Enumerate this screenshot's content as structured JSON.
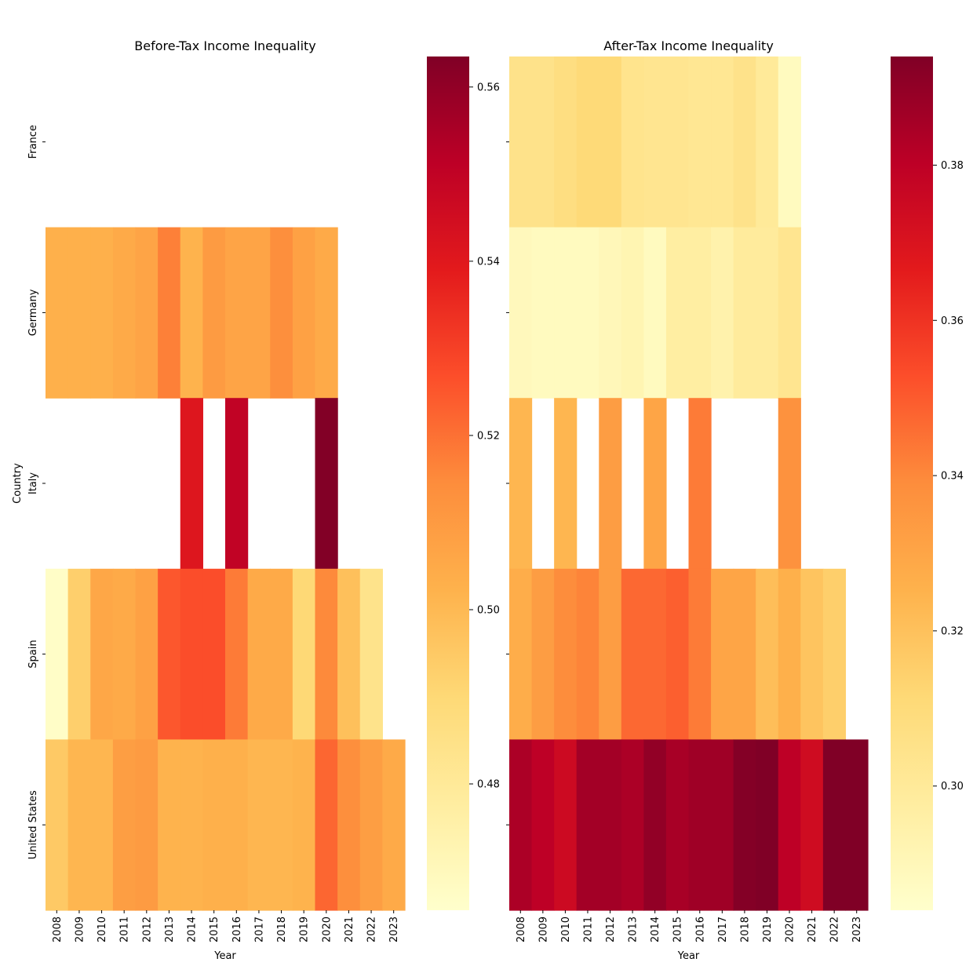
{
  "chart_data": [
    {
      "type": "heatmap",
      "title": "Before-Tax Income Inequality",
      "xlabel": "Year",
      "ylabel": "Country",
      "x_categories": [
        "2008",
        "2009",
        "2010",
        "2011",
        "2012",
        "2013",
        "2014",
        "2015",
        "2016",
        "2017",
        "2018",
        "2019",
        "2020",
        "2021",
        "2022",
        "2023"
      ],
      "y_categories": [
        "France",
        "Germany",
        "Italy",
        "Spain",
        "United States"
      ],
      "colormap": "YlOrRd",
      "vmin": 0.4655,
      "vmax": 0.5635,
      "colorbar_ticks": [
        0.48,
        0.5,
        0.52,
        0.54,
        0.56
      ],
      "values": [
        [
          null,
          null,
          null,
          null,
          null,
          null,
          null,
          null,
          null,
          null,
          null,
          null,
          null,
          null,
          null,
          null
        ],
        [
          0.503,
          0.503,
          0.503,
          0.505,
          0.507,
          0.517,
          0.502,
          0.51,
          0.507,
          0.507,
          0.514,
          0.508,
          0.505,
          null,
          null,
          null
        ],
        [
          null,
          null,
          null,
          null,
          null,
          null,
          0.541,
          null,
          0.55,
          null,
          null,
          null,
          0.563,
          null,
          null,
          null
        ],
        [
          0.467,
          0.493,
          0.506,
          0.505,
          0.508,
          0.525,
          0.527,
          0.527,
          0.518,
          0.505,
          0.505,
          0.49,
          0.515,
          0.498,
          0.484,
          null
        ],
        [
          0.495,
          0.501,
          0.501,
          0.509,
          0.51,
          0.502,
          0.502,
          0.503,
          0.503,
          0.501,
          0.501,
          0.502,
          0.522,
          0.514,
          0.509,
          0.505
        ]
      ]
    },
    {
      "type": "heatmap",
      "title": "After-Tax Income Inequality",
      "xlabel": "Year",
      "ylabel": "",
      "x_categories": [
        "2008",
        "2009",
        "2010",
        "2011",
        "2012",
        "2013",
        "2014",
        "2015",
        "2016",
        "2017",
        "2018",
        "2019",
        "2020",
        "2021",
        "2022",
        "2023"
      ],
      "y_categories": [
        "France",
        "Germany",
        "Italy",
        "Spain",
        "United States"
      ],
      "colormap": "YlOrRd",
      "vmin": 0.284,
      "vmax": 0.394,
      "colorbar_ticks": [
        0.3,
        0.32,
        0.34,
        0.36,
        0.38
      ],
      "values": [
        [
          0.305,
          0.305,
          0.308,
          0.311,
          0.311,
          0.304,
          0.303,
          0.303,
          0.302,
          0.302,
          0.305,
          0.3,
          0.288,
          null,
          null,
          null
        ],
        [
          0.289,
          0.288,
          0.288,
          0.288,
          0.29,
          0.292,
          0.288,
          0.297,
          0.297,
          0.294,
          0.299,
          0.299,
          0.303,
          null,
          null,
          null
        ],
        [
          0.324,
          null,
          0.324,
          null,
          0.333,
          null,
          0.33,
          null,
          0.343,
          null,
          null,
          null,
          0.337,
          null,
          null,
          null
        ],
        [
          0.327,
          0.333,
          0.339,
          0.341,
          0.333,
          0.347,
          0.347,
          0.349,
          0.343,
          0.33,
          0.33,
          0.321,
          0.326,
          0.319,
          0.315,
          null
        ],
        [
          0.384,
          0.38,
          0.375,
          0.386,
          0.386,
          0.384,
          0.39,
          0.385,
          0.387,
          0.387,
          0.393,
          0.394,
          0.38,
          0.374,
          0.394,
          0.394
        ]
      ]
    }
  ]
}
